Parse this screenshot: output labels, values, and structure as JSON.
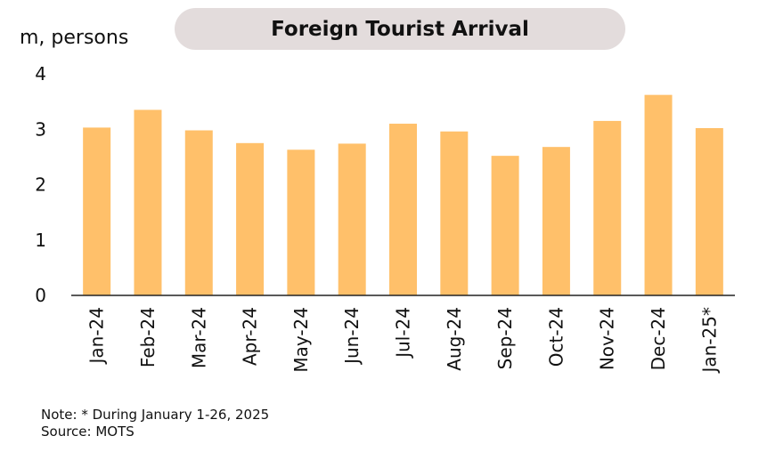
{
  "chart_data": {
    "type": "bar",
    "title": "Foreign Tourist Arrival",
    "ylabel": "m, persons",
    "xlabel": "",
    "categories": [
      "Jan-24",
      "Feb-24",
      "Mar-24",
      "Apr-24",
      "May-24",
      "Jun-24",
      "Jul-24",
      "Aug-24",
      "Sep-24",
      "Oct-24",
      "Nov-24",
      "Dec-24",
      "Jan-25*"
    ],
    "values": [
      3.03,
      3.35,
      2.98,
      2.75,
      2.63,
      2.74,
      3.1,
      2.96,
      2.52,
      2.68,
      3.15,
      3.62,
      3.02
    ],
    "ylim": [
      0,
      4
    ],
    "yticks": [
      0,
      1,
      2,
      3,
      4
    ],
    "grid": false,
    "bar_color": "#ffc06a"
  },
  "footer": {
    "note": "Note: * During January 1-26, 2025",
    "source": "Source: MOTS"
  }
}
